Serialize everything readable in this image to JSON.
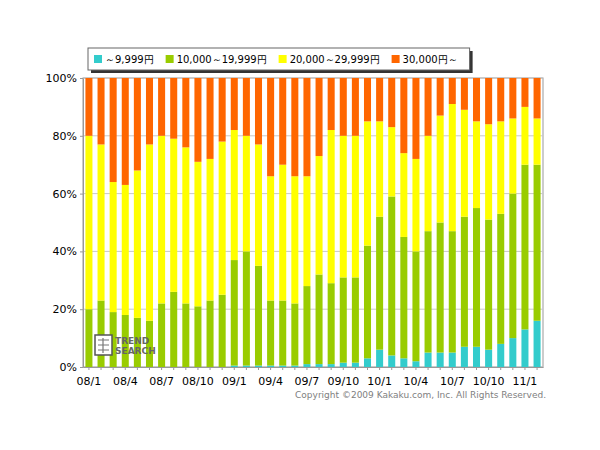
{
  "chart_data": {
    "type": "bar",
    "stacked": true,
    "grid": true,
    "legend": "top",
    "annotations": [
      "Copyright ©2009 Kakaku.com, Inc. All Rights Reserved.",
      "TREND",
      "SEARCH"
    ],
    "categories": [
      "08/1",
      null,
      null,
      "08/4",
      null,
      null,
      "08/7",
      null,
      null,
      "08/10",
      null,
      null,
      "09/1",
      null,
      null,
      "09/4",
      null,
      null,
      "09/7",
      null,
      null,
      "09/10",
      null,
      null,
      "10/1",
      null,
      null,
      "10/4",
      null,
      null,
      "10/7",
      null,
      null,
      "10/10",
      null,
      null,
      "11/1",
      null
    ],
    "ylim": [
      0,
      100
    ],
    "yticks": [
      {
        "value": 0,
        "label": "0%"
      },
      {
        "value": 20,
        "label": "20%"
      },
      {
        "value": 40,
        "label": "40%"
      },
      {
        "value": 60,
        "label": "60%"
      },
      {
        "value": 80,
        "label": "80%"
      },
      {
        "value": 100,
        "label": "100%"
      }
    ],
    "series": [
      {
        "name": "～9,999円",
        "color": "#33cccc",
        "values": [
          0,
          0,
          0,
          0,
          0,
          0,
          0,
          0,
          0,
          0,
          0,
          0,
          0.5,
          0.5,
          0.5,
          0.5,
          0.5,
          0.5,
          1,
          1,
          1,
          1.5,
          1.5,
          3,
          6,
          4,
          3,
          2,
          5,
          5,
          5,
          7,
          7,
          6,
          8,
          10,
          13,
          16
        ]
      },
      {
        "name": "10,000～19,999円",
        "color": "#99cc00",
        "values": [
          20,
          23,
          19,
          18,
          17,
          16,
          22,
          26,
          22,
          21,
          23,
          25,
          36.5,
          39.5,
          34.5,
          22.5,
          22.5,
          21.5,
          27,
          31,
          28,
          29.5,
          29.5,
          39,
          46,
          55,
          42,
          38,
          42,
          45,
          42,
          45,
          48,
          45,
          45,
          50,
          57,
          54
        ]
      },
      {
        "name": "20,000～29,999円",
        "color": "#ffff00",
        "values": [
          60,
          54,
          45,
          45,
          51,
          61,
          58,
          53,
          54,
          50,
          49,
          53,
          45,
          40,
          42,
          43,
          47,
          44,
          38,
          41,
          53,
          49,
          49,
          43,
          33,
          24,
          29,
          32,
          33,
          37,
          44,
          37,
          30,
          33,
          32,
          26,
          20,
          16
        ]
      },
      {
        "name": "30,000円～",
        "color": "#ff6600",
        "values": [
          20,
          23,
          36,
          37,
          32,
          23,
          20,
          21,
          24,
          29,
          28,
          22,
          18,
          20,
          23,
          34,
          30,
          34,
          34,
          27,
          18,
          20,
          20,
          15,
          15,
          17,
          26,
          28,
          20,
          13,
          9,
          11,
          15,
          16,
          15,
          14,
          10,
          14
        ]
      }
    ]
  }
}
